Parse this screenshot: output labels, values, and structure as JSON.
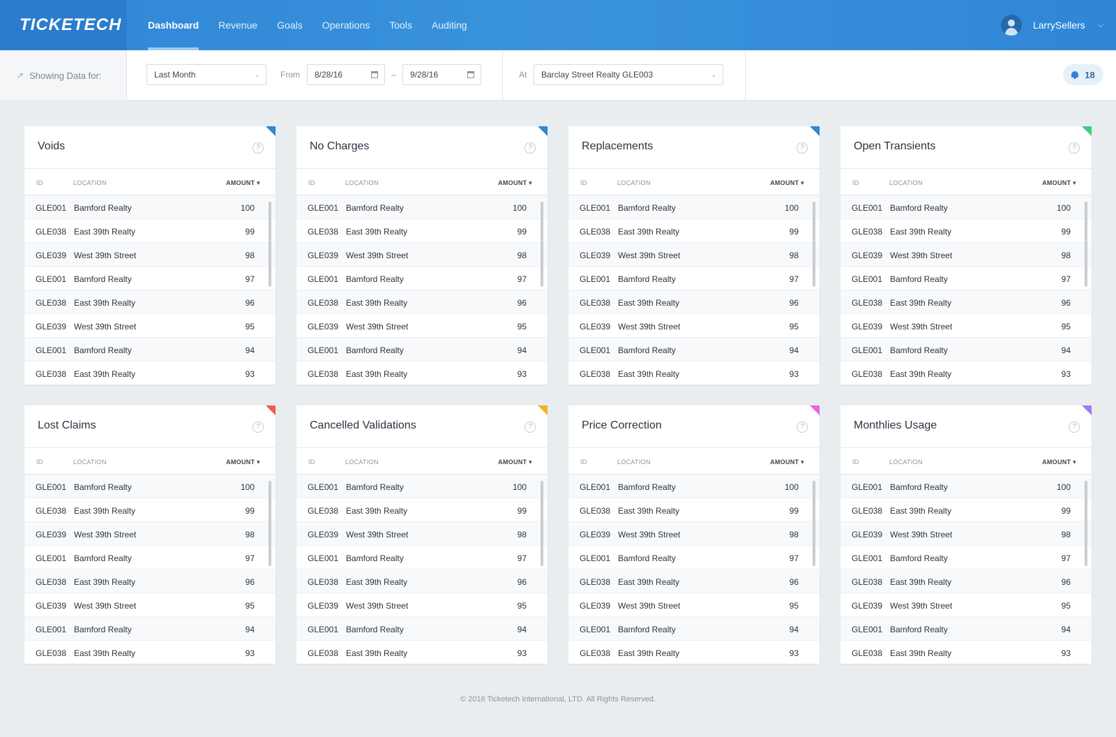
{
  "header": {
    "logo": "TICKETECH",
    "nav": [
      "Dashboard",
      "Revenue",
      "Goals",
      "Operations",
      "Tools",
      "Auditing"
    ],
    "active_nav": "Dashboard",
    "username": "LarrySellers"
  },
  "filters": {
    "showing_label": "Showing Data for:",
    "period": "Last Month",
    "from_label": "From",
    "from_date": "8/28/16",
    "range_sep": "–",
    "to_date": "9/28/16",
    "at_label": "At",
    "location": "Barclay Street Realty GLE003",
    "notifications": "18"
  },
  "columns": {
    "id": "ID",
    "location": "LOCATION",
    "amount": "AMOUNT ▾"
  },
  "rows": [
    {
      "id": "GLE001",
      "location": "Bamford Realty",
      "amount": "100"
    },
    {
      "id": "GLE038",
      "location": "East 39th Realty",
      "amount": "99"
    },
    {
      "id": "GLE039",
      "location": "West 39th Street",
      "amount": "98"
    },
    {
      "id": "GLE001",
      "location": "Bamford Realty",
      "amount": "97"
    },
    {
      "id": "GLE038",
      "location": "East 39th Realty",
      "amount": "96"
    },
    {
      "id": "GLE039",
      "location": "West 39th Street",
      "amount": "95"
    },
    {
      "id": "GLE001",
      "location": "Bamford Realty",
      "amount": "94"
    },
    {
      "id": "GLE038",
      "location": "East 39th Realty",
      "amount": "93"
    }
  ],
  "cards": [
    {
      "title": "Voids",
      "accent": "#2f86d6"
    },
    {
      "title": "No Charges",
      "accent": "#2f86d6"
    },
    {
      "title": "Replacements",
      "accent": "#2f86d6"
    },
    {
      "title": "Open Transients",
      "accent": "#3fcf7a"
    },
    {
      "title": "Lost Claims",
      "accent": "#ef5a4f"
    },
    {
      "title": "Cancelled Validations",
      "accent": "#f3b21f"
    },
    {
      "title": "Price Correction",
      "accent": "#e665e0"
    },
    {
      "title": "Monthlies Usage",
      "accent": "#9c7ef0"
    }
  ],
  "help_glyph": "?",
  "footer": "© 2016 Ticketech International, LTD. All Rights Reserved."
}
